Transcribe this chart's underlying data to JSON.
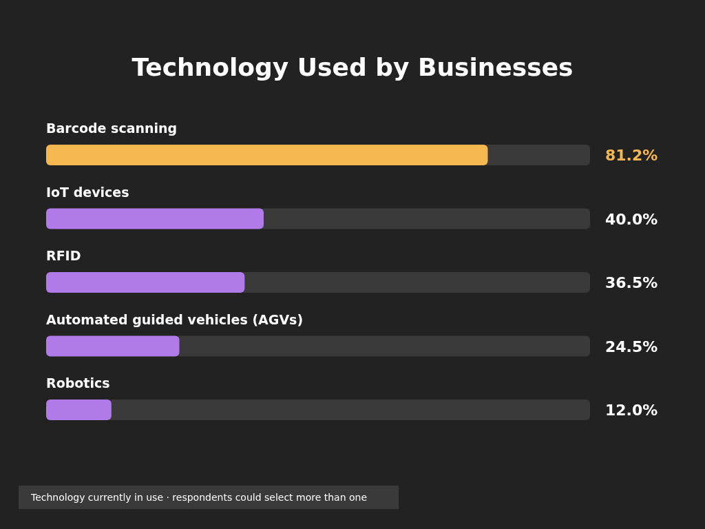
{
  "chart_data": {
    "type": "bar",
    "orientation": "horizontal",
    "title": "Technology Used by Businesses",
    "categories": [
      "Barcode scanning",
      "IoT devices",
      "RFID",
      "Automated guided vehicles (AGVs)",
      "Robotics"
    ],
    "values": [
      81.2,
      40.0,
      36.5,
      24.5,
      12.0
    ],
    "colors": [
      "#f5b74f",
      "#b07ae8",
      "#b07ae8",
      "#b07ae8",
      "#b07ae8"
    ],
    "value_labels": [
      "81.2%",
      "40.0%",
      "36.5%",
      "24.5%",
      "12.0%"
    ],
    "xlim": [
      0,
      100
    ],
    "annotations": [
      "Technology currently in use · respondents could select more than one"
    ]
  }
}
